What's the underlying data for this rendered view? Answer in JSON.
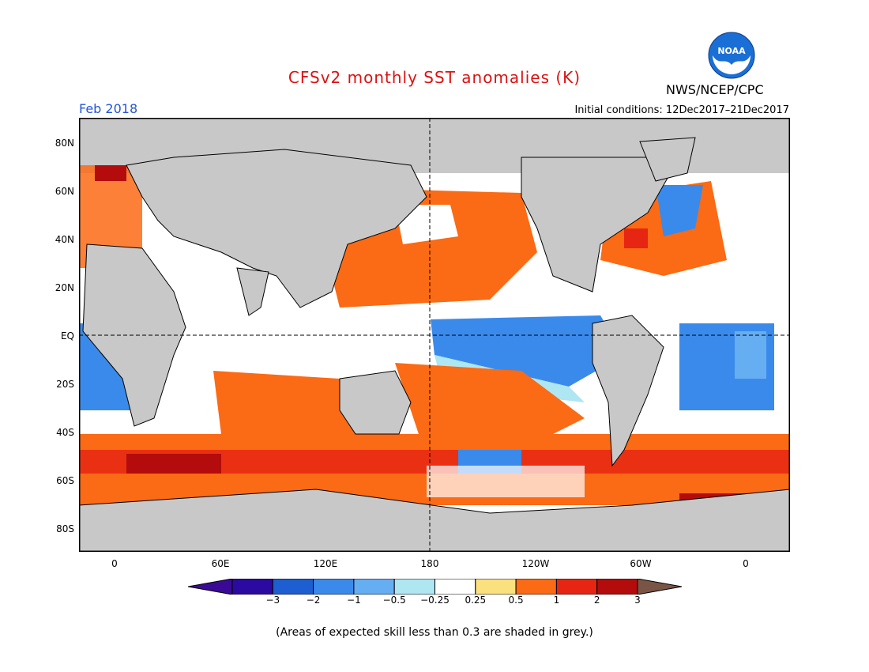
{
  "header": {
    "title": "CFSv2 monthly SST anomalies (K)",
    "agency": "NWS/NCEP/CPC",
    "logo_text": "NOAA",
    "month": "Feb 2018",
    "initial_conditions": "Initial conditions: 12Dec2017–21Dec2017"
  },
  "map": {
    "lat_labels": [
      "80N",
      "60N",
      "40N",
      "20N",
      "EQ",
      "20S",
      "40S",
      "60S",
      "80S"
    ],
    "lon_labels": [
      "0",
      "60E",
      "120E",
      "180",
      "120W",
      "60W",
      "0"
    ],
    "land_color": "#c8c8c8",
    "ocean_color": "#ffffff"
  },
  "colorbar": {
    "labels": [
      "−3",
      "−2",
      "−1",
      "−0.5",
      "−0.25",
      "0.25",
      "0.5",
      "1",
      "2",
      "3"
    ],
    "colors": [
      "#2a0aa0",
      "#1d5fd0",
      "#3a8aeb",
      "#66aef2",
      "#aee6f2",
      "#ffffff",
      "#fbe07e",
      "#fb6a14",
      "#e62612",
      "#b40c0c"
    ],
    "under_color": "#3a0a96",
    "over_color": "#7a5546"
  },
  "footnote": "(Areas of expected skill less than 0.3 are shaded in grey.)"
}
